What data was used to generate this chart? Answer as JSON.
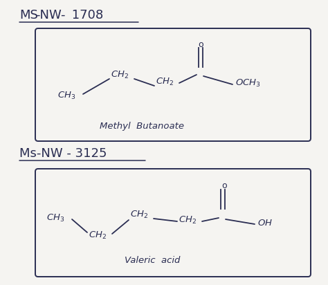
{
  "bg_color": "#e8e6e3",
  "paper_color": "#f5f4f1",
  "ink_color": "#2a2d52",
  "title1": "MS-NW- 1708",
  "title2": "Ms-NW - 3125",
  "label1": "Methyl  Butanoate",
  "label2": "Valeric  acid"
}
